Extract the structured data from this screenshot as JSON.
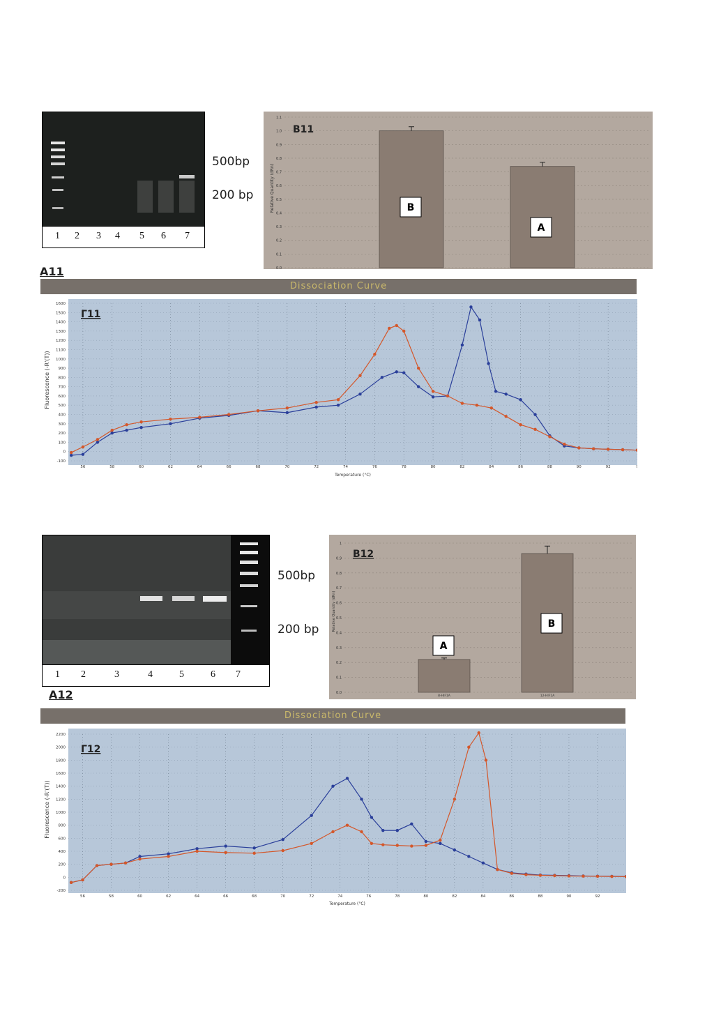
{
  "figure1": {
    "gel": {
      "label": "A11",
      "lane_numbers": [
        "1",
        "2",
        "3",
        "4",
        "5",
        "6",
        "7"
      ],
      "markers": [
        "500bp",
        "200 bp"
      ]
    },
    "bar": {
      "label": "B11",
      "ylabel": "Relative Quantity (dRn)",
      "yticks": [
        "1.1",
        "1.0",
        "0.9",
        "0.8",
        "0.7",
        "0.6",
        "0.5",
        "0.4",
        "0.3",
        "0.2",
        "0.1",
        "0.0"
      ]
    },
    "dissociation": {
      "header": "Dissociation Curve",
      "label": "Γ11",
      "ylabel": "Fluorescence (-R'(T))",
      "xlabel": "Temperature (°C)",
      "xticks": [
        "56",
        "58",
        "60",
        "62",
        "64",
        "66",
        "68",
        "70",
        "72",
        "74",
        "76",
        "78",
        "80",
        "82",
        "84",
        "86",
        "88",
        "90",
        "92",
        "9"
      ],
      "yticks": [
        "1600",
        "1500",
        "1400",
        "1300",
        "1200",
        "1100",
        "1000",
        "900",
        "800",
        "700",
        "600",
        "500",
        "400",
        "300",
        "200",
        "100",
        "0",
        "-100"
      ]
    }
  },
  "figure2": {
    "gel": {
      "label": "A12",
      "lane_numbers": [
        "1",
        "2",
        "3",
        "4",
        "5",
        "6",
        "7"
      ],
      "markers": [
        "500bp",
        "200 bp"
      ]
    },
    "bar": {
      "label": "B12",
      "ylabel": "Relative Quantity (dRn)",
      "xticks": [
        "8-HIF1A",
        "12-HIF1A"
      ],
      "yticks": [
        "1",
        "0.9",
        "0.8",
        "0.7",
        "0.6",
        "0.5",
        "0.4",
        "0.3",
        "0.2",
        "0.1",
        "0.0"
      ]
    },
    "dissociation": {
      "header": "Dissociation Curve",
      "label": "Γ12",
      "ylabel": "Fluorescence (-R'(T))",
      "xlabel": "Temperature (°C)",
      "xticks": [
        "56",
        "58",
        "60",
        "62",
        "64",
        "66",
        "68",
        "70",
        "72",
        "74",
        "76",
        "78",
        "80",
        "82",
        "84",
        "86",
        "88",
        "90",
        "92"
      ],
      "yticks": [
        "2200",
        "2000",
        "1800",
        "1600",
        "1400",
        "1200",
        "1000",
        "800",
        "600",
        "400",
        "200",
        "0",
        "-200"
      ]
    }
  },
  "chart_data": [
    {
      "type": "bar",
      "title": "B11",
      "ylabel": "Relative Quantity (dRn)",
      "ylim": [
        0,
        1.1
      ],
      "categories": [
        "B",
        "A"
      ],
      "values": [
        1.0,
        0.74
      ],
      "errors": [
        0.03,
        0.03
      ],
      "colors": [
        "#8a7c72",
        "#8a7c72"
      ]
    },
    {
      "type": "line",
      "title": "Γ11",
      "xlabel": "Temperature (°C)",
      "ylabel": "Fluorescence (-R'(T))",
      "xlim": [
        55,
        94
      ],
      "ylim": [
        -100,
        1600
      ],
      "series": [
        {
          "color": "#2a3f9a",
          "x": [
            55.2,
            56,
            57,
            58,
            59,
            60,
            62,
            64,
            66,
            68,
            70,
            72,
            73.5,
            75,
            76.5,
            77.5,
            78,
            79,
            80,
            81,
            82,
            82.6,
            83.2,
            83.8,
            84.3,
            85,
            86,
            87,
            88,
            89,
            90,
            91,
            92,
            93,
            94
          ],
          "y": [
            -40,
            -30,
            100,
            200,
            230,
            260,
            300,
            360,
            390,
            440,
            420,
            480,
            500,
            620,
            800,
            860,
            850,
            700,
            590,
            600,
            1150,
            1560,
            1420,
            950,
            650,
            620,
            560,
            400,
            170,
            60,
            40,
            30,
            25,
            20,
            15
          ]
        },
        {
          "color": "#d4572a",
          "x": [
            55.2,
            56,
            57,
            58,
            59,
            60,
            62,
            64,
            66,
            68,
            70,
            72,
            73.5,
            75,
            76,
            77,
            77.5,
            78,
            79,
            80,
            81,
            82,
            83,
            84,
            85,
            86,
            87,
            88,
            89,
            90,
            91,
            92,
            93,
            94
          ],
          "y": [
            -10,
            50,
            130,
            230,
            290,
            320,
            350,
            370,
            400,
            440,
            470,
            530,
            560,
            820,
            1050,
            1330,
            1360,
            1300,
            900,
            650,
            600,
            520,
            500,
            470,
            380,
            290,
            240,
            160,
            80,
            40,
            30,
            25,
            20,
            15
          ]
        }
      ]
    },
    {
      "type": "bar",
      "title": "B12",
      "ylabel": "Relative Quantity (dRn)",
      "ylim": [
        0,
        1.0
      ],
      "categories": [
        "8-HIF1A",
        "12-HIF1A"
      ],
      "bar_labels": [
        "A",
        "B"
      ],
      "values": [
        0.22,
        0.93
      ],
      "errors": [
        0.01,
        0.05
      ],
      "colors": [
        "#8a7c72",
        "#8a7c72"
      ]
    },
    {
      "type": "line",
      "title": "Γ12",
      "xlabel": "Temperature (°C)",
      "ylabel": "Fluorescence (-R'(T))",
      "xlim": [
        55,
        94
      ],
      "ylim": [
        -200,
        2200
      ],
      "series": [
        {
          "color": "#2a3f9a",
          "x": [
            55.2,
            56,
            57,
            58,
            59,
            60,
            62,
            64,
            66,
            68,
            70,
            72,
            73.5,
            74.5,
            75.5,
            76.2,
            77,
            78,
            79,
            80,
            81,
            82,
            83,
            84,
            85,
            86,
            87,
            88,
            89,
            90,
            91,
            92,
            93,
            94
          ],
          "y": [
            -80,
            -40,
            180,
            200,
            220,
            320,
            360,
            440,
            480,
            450,
            580,
            950,
            1400,
            1520,
            1200,
            920,
            720,
            720,
            820,
            550,
            520,
            420,
            320,
            220,
            120,
            70,
            50,
            35,
            30,
            25,
            20,
            18,
            15,
            12
          ]
        },
        {
          "color": "#d4572a",
          "x": [
            55.2,
            56,
            57,
            58,
            59,
            60,
            62,
            64,
            66,
            68,
            70,
            72,
            73.5,
            74.5,
            75.5,
            76.2,
            77,
            78,
            79,
            80,
            81,
            82,
            83,
            83.7,
            84.2,
            85,
            86,
            87,
            88,
            89,
            90,
            91,
            92,
            93,
            94
          ],
          "y": [
            -80,
            -40,
            180,
            200,
            220,
            280,
            320,
            400,
            380,
            370,
            410,
            520,
            700,
            800,
            700,
            520,
            500,
            490,
            480,
            490,
            570,
            1200,
            2000,
            2220,
            1800,
            120,
            60,
            40,
            30,
            25,
            20,
            18,
            15,
            12,
            10
          ]
        }
      ]
    }
  ]
}
